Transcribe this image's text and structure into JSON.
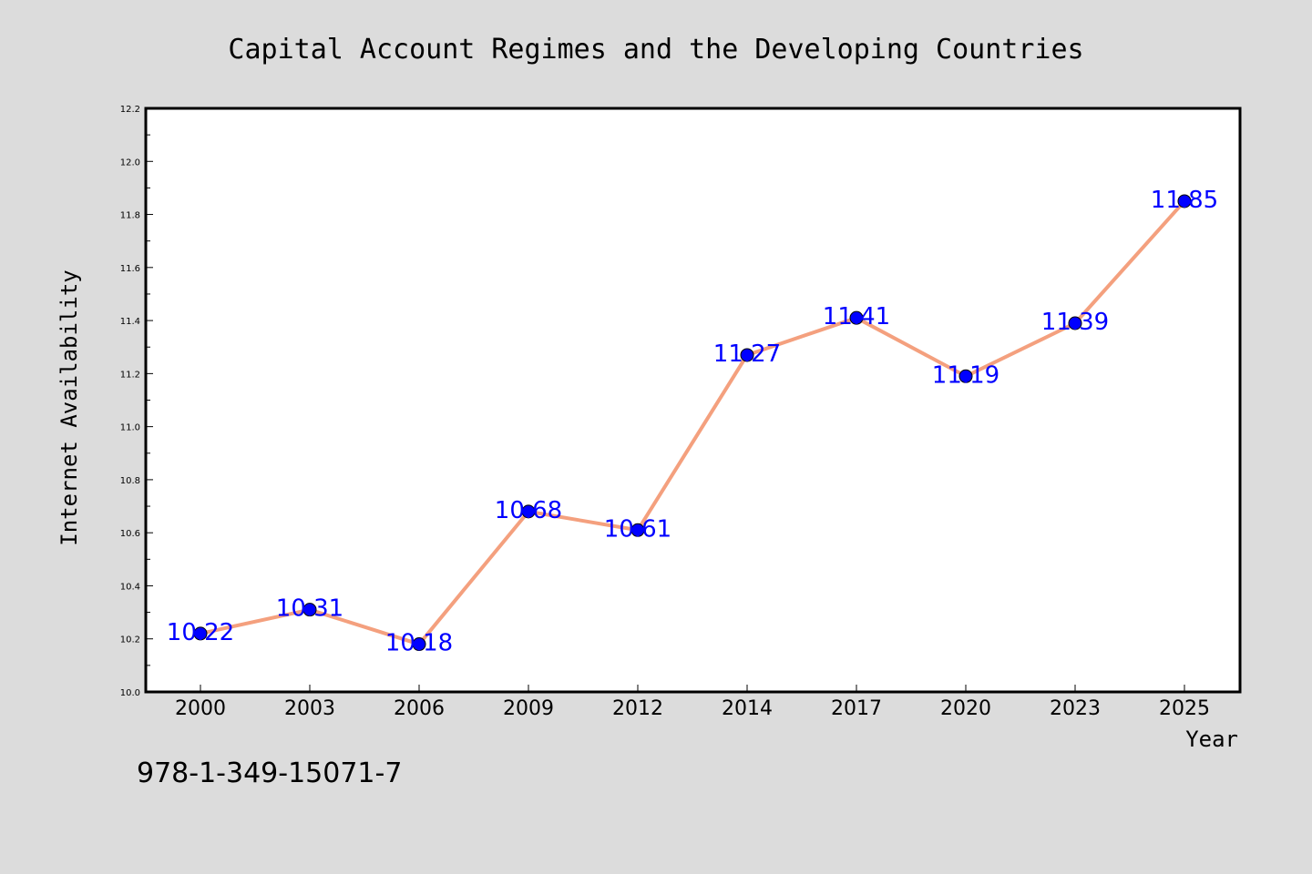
{
  "chart_data": {
    "type": "line",
    "title": "Capital Account Regimes and the Developing Countries",
    "xlabel": "Year",
    "ylabel": "Internet Availability",
    "categories": [
      "2000",
      "2003",
      "2006",
      "2009",
      "2012",
      "2014",
      "2017",
      "2020",
      "2023",
      "2025"
    ],
    "series": [
      {
        "values": [
          10.22,
          10.31,
          10.18,
          10.68,
          10.61,
          11.27,
          11.41,
          11.19,
          11.39,
          11.85
        ],
        "labels": [
          "10.22",
          "10.31",
          "10.18",
          "10.68",
          "10.61",
          "11.27",
          "11.41",
          "11.19",
          "11.39",
          "11.85"
        ],
        "line_color": "#f4a07e",
        "marker_color": "#0000ff"
      }
    ],
    "ylim": [
      10.0,
      12.2
    ],
    "yticks": [
      "10.0",
      "10.2",
      "10.4",
      "10.6",
      "10.8",
      "11.0",
      "11.2",
      "11.4",
      "11.6",
      "11.8",
      "12.0",
      "12.2"
    ],
    "grid": false,
    "legend": "none"
  },
  "footer": {
    "isbn": "978-1-349-15071-7"
  }
}
